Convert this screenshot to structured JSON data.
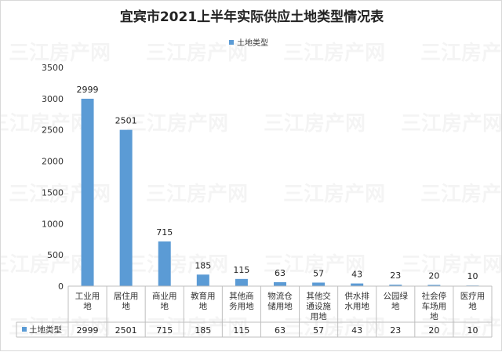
{
  "chart_data": {
    "type": "bar",
    "title": "宜宾市2021上半年实际供应土地类型情况表",
    "categories": [
      [
        "工业用",
        "地"
      ],
      [
        "居住用",
        "地"
      ],
      [
        "商业用",
        "地"
      ],
      [
        "教育用",
        "地"
      ],
      [
        "其他商",
        "务用地"
      ],
      [
        "物流仓",
        "储用地"
      ],
      [
        "其他交",
        "通设施",
        "用地"
      ],
      [
        "供水排",
        "水用地"
      ],
      [
        "公园绿",
        "地"
      ],
      [
        "社会停",
        "车场用",
        "地"
      ],
      [
        "医疗用",
        "地"
      ]
    ],
    "series": [
      {
        "name": "土地类型",
        "values": [
          2999,
          2501,
          715,
          185,
          115,
          63,
          57,
          43,
          23,
          20,
          10
        ],
        "color": "#5b9bd5"
      }
    ],
    "ylim": [
      0,
      3500
    ],
    "yticks": [
      0,
      500,
      1000,
      1500,
      2000,
      2500,
      3000,
      3500
    ],
    "grid": false,
    "legend": "top",
    "data_table": true,
    "watermark": "三江房产网"
  }
}
